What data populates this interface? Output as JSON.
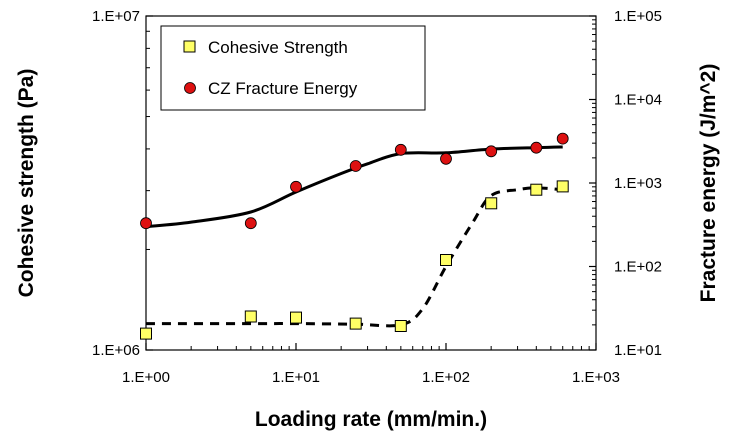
{
  "chart_data": {
    "type": "scatter",
    "xlabel": "Loading rate (mm/min.)",
    "ylabel_left": "Cohesive strength (Pa)",
    "ylabel_right": "Fracture energy (J/m^2)",
    "x_scale": "log",
    "y_left_scale": "log",
    "y_right_scale": "log",
    "xlim": [
      1,
      1000
    ],
    "ylim_left": [
      1000000,
      10000000
    ],
    "ylim_right": [
      10,
      100000
    ],
    "x_ticks": [
      "1.E+00",
      "1.E+01",
      "1.E+02",
      "1.E+03"
    ],
    "y_left_ticks": [
      "1.E+06",
      "1.E+07"
    ],
    "y_right_ticks": [
      "1.E+01",
      "1.E+02",
      "1.E+03",
      "1.E+04",
      "1.E+05"
    ],
    "legend_position": "top-left",
    "grid": false,
    "series": [
      {
        "name": "Cohesive Strength",
        "axis": "left",
        "marker": "square",
        "color": "#ffff66",
        "x": [
          1,
          5,
          10,
          25,
          50,
          100,
          200,
          400,
          600
        ],
        "y": [
          1120000,
          1260000,
          1250000,
          1200000,
          1180000,
          1860000,
          2750000,
          3020000,
          3090000
        ]
      },
      {
        "name": "CZ Fracture Energy",
        "axis": "right",
        "marker": "circle",
        "color": "#dd1111",
        "x": [
          1,
          5,
          10,
          25,
          50,
          100,
          200,
          400,
          600
        ],
        "y": [
          330,
          330,
          900,
          1600,
          2500,
          1950,
          2400,
          2650,
          3400
        ]
      }
    ],
    "fits": [
      {
        "series": "Cohesive Strength",
        "style": "dashed",
        "axis": "left",
        "x": [
          1,
          5,
          10,
          25,
          50,
          70,
          100,
          150,
          200,
          300,
          400,
          600
        ],
        "y": [
          1200000,
          1200000,
          1200000,
          1195000,
          1190000,
          1330000,
          1780000,
          2400000,
          2900000,
          3020000,
          3060000,
          3020000
        ]
      },
      {
        "series": "CZ Fracture Energy",
        "style": "solid",
        "axis": "right",
        "x": [
          1,
          2,
          5,
          10,
          20,
          30,
          50,
          100,
          200,
          400,
          600
        ],
        "y": [
          300,
          340,
          450,
          780,
          1300,
          1700,
          2250,
          2300,
          2550,
          2650,
          2700
        ]
      }
    ]
  }
}
